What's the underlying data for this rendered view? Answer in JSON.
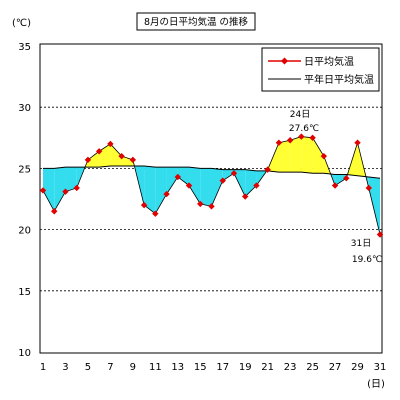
{
  "chart_data": {
    "type": "line",
    "title": "8月の日平均気温 の推移",
    "ylabel": "(℃)",
    "xlabel": "(日)",
    "ylim": [
      10,
      35
    ],
    "xlim": [
      1,
      31
    ],
    "y_ticks": [
      10,
      15,
      20,
      25,
      30,
      35
    ],
    "x_ticks": [
      1,
      3,
      5,
      7,
      9,
      11,
      13,
      15,
      17,
      19,
      21,
      23,
      25,
      27,
      29,
      31
    ],
    "grid": "dashed horizontal at 20, 25, 30",
    "legend_position": "top-right",
    "x": [
      1,
      2,
      3,
      4,
      5,
      6,
      7,
      8,
      9,
      10,
      11,
      12,
      13,
      14,
      15,
      16,
      17,
      18,
      19,
      20,
      21,
      22,
      23,
      24,
      25,
      26,
      27,
      28,
      29,
      30,
      31
    ],
    "series": [
      {
        "name": "日平均気温",
        "color": "#e00000",
        "marker": "diamond",
        "values": [
          23.2,
          21.5,
          23.1,
          23.4,
          25.7,
          26.4,
          27.0,
          26.0,
          25.7,
          22.0,
          21.3,
          22.9,
          24.3,
          23.6,
          22.1,
          21.9,
          24.0,
          24.6,
          22.7,
          23.6,
          24.9,
          27.1,
          27.3,
          27.6,
          27.5,
          26.0,
          23.6,
          24.2,
          27.1,
          23.4,
          19.6
        ]
      },
      {
        "name": "平年日平均気温",
        "color": "#000000",
        "values": [
          25.0,
          25.0,
          25.1,
          25.1,
          25.1,
          25.1,
          25.2,
          25.2,
          25.2,
          25.2,
          25.1,
          25.1,
          25.1,
          25.1,
          25.0,
          25.0,
          24.9,
          24.9,
          24.9,
          24.8,
          24.8,
          24.7,
          24.7,
          24.7,
          24.6,
          24.6,
          24.5,
          24.5,
          24.4,
          24.3,
          24.2
        ]
      }
    ],
    "fill_above_normal_color": "#ffff33",
    "fill_below_normal_color": "#33ddee",
    "annotations": [
      {
        "day_label": "24日",
        "value_label": "27.6℃",
        "x": 24
      },
      {
        "day_label": "31日",
        "value_label": "19.6℃",
        "x": 31
      }
    ]
  }
}
